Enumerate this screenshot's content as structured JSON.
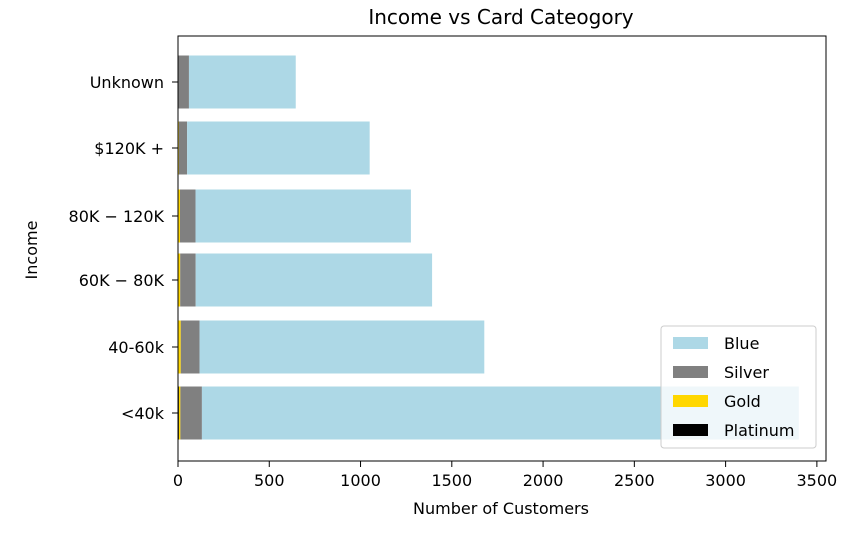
{
  "chart_data": {
    "type": "bar",
    "orientation": "horizontal",
    "stacked": true,
    "title": "Income vs Card Cateogory",
    "xlabel": "Number of Customers",
    "ylabel": "Income",
    "xlim": [
      0,
      3550
    ],
    "xticks": [
      0,
      500,
      1000,
      1500,
      2000,
      2500,
      3000,
      3500
    ],
    "categories": [
      "<40k",
      "40-60k",
      "60K− 80K",
      "80K− 120K",
      "$120K +",
      "Unknown"
    ],
    "category_labels": [
      "<40k",
      "40-60k",
      "60K − 80K",
      "80K − 120K",
      "$120K +",
      "Unknown"
    ],
    "series": [
      {
        "name": "Platinum",
        "color": "#000000",
        "values": [
          5,
          3,
          2,
          3,
          2,
          0
        ]
      },
      {
        "name": "Gold",
        "color": "#FFD700",
        "values": [
          8,
          12,
          10,
          8,
          3,
          0
        ]
      },
      {
        "name": "Silver",
        "color": "#808080",
        "values": [
          118,
          103,
          85,
          85,
          45,
          60
        ]
      },
      {
        "name": "Blue",
        "color": "#ADD8E6",
        "values": [
          3270,
          1560,
          1295,
          1180,
          1000,
          585
        ]
      }
    ],
    "legend": {
      "position": "lower-right",
      "order": [
        "Blue",
        "Silver",
        "Gold",
        "Platinum"
      ]
    },
    "grid": false
  }
}
